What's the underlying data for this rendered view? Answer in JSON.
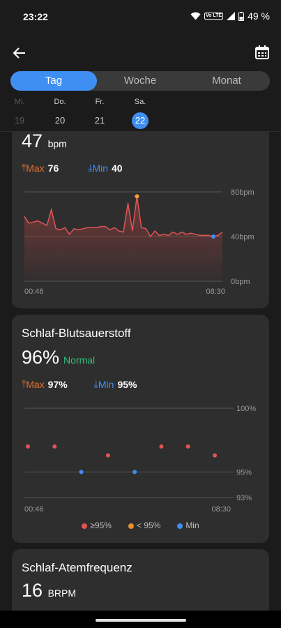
{
  "status": {
    "time": "23:22",
    "volte": "Vo LTE",
    "battery": "49 %"
  },
  "tabs": [
    {
      "label": "Tag",
      "active": true
    },
    {
      "label": "Woche",
      "active": false
    },
    {
      "label": "Monat",
      "active": false
    }
  ],
  "days": [
    {
      "name": "Mi.",
      "date": "19",
      "state": "muted"
    },
    {
      "name": "Do.",
      "date": "20",
      "state": "normal"
    },
    {
      "name": "Fr.",
      "date": "21",
      "state": "normal"
    },
    {
      "name": "Sa.",
      "date": "22",
      "state": "selected"
    }
  ],
  "heart": {
    "value": "47",
    "unit": "bpm",
    "max_label": "Max",
    "max_value": "76",
    "min_label": "Min",
    "min_value": "40"
  },
  "spo2": {
    "title": "Schlaf-Blutsauerstoff",
    "value": "96%",
    "status": "Normal",
    "max_label": "Max",
    "max_value": "97%",
    "min_label": "Min",
    "min_value": "95%",
    "legend": [
      {
        "label": "≥95%",
        "color": "#e05454"
      },
      {
        "label": "< 95%",
        "color": "#e8902a"
      },
      {
        "label": "Min",
        "color": "#3f8ff3"
      }
    ]
  },
  "resp": {
    "title": "Schlaf-Atemfrequenz",
    "value": "16",
    "unit": "BRPM"
  },
  "colors": {
    "accent": "#3f8ff3",
    "line": "#e05454",
    "max_dot": "#f2a03d",
    "normal": "#2ec27e"
  },
  "chart_data": [
    {
      "type": "area",
      "x_start": "00:46",
      "x_end": "08:30",
      "ytick_labels": [
        "80bpm",
        "40bpm",
        "0bpm"
      ],
      "ylim": [
        0,
        80
      ],
      "values": [
        58,
        52,
        53,
        54,
        52,
        50,
        64,
        47,
        46,
        48,
        42,
        47,
        46,
        47,
        48,
        48,
        48,
        49,
        49,
        46,
        48,
        45,
        44,
        70,
        45,
        76,
        48,
        47,
        40,
        45,
        41,
        42,
        41,
        44,
        42,
        44,
        42,
        43,
        42,
        41,
        41,
        41,
        40,
        41,
        44
      ],
      "max_point": 76,
      "min_point": 40,
      "grid": true
    },
    {
      "type": "scatter",
      "x_start": "00:46",
      "x_end": "08:30",
      "ytick_labels": [
        "100%",
        "95%",
        "93%"
      ],
      "ylim": [
        93,
        100
      ],
      "values": [
        97,
        97,
        95,
        96.3,
        95,
        97,
        97,
        96.3
      ],
      "point_types": [
        "normal",
        "normal",
        "min",
        "normal",
        "min",
        "normal",
        "normal",
        "normal"
      ],
      "grid": true
    }
  ]
}
